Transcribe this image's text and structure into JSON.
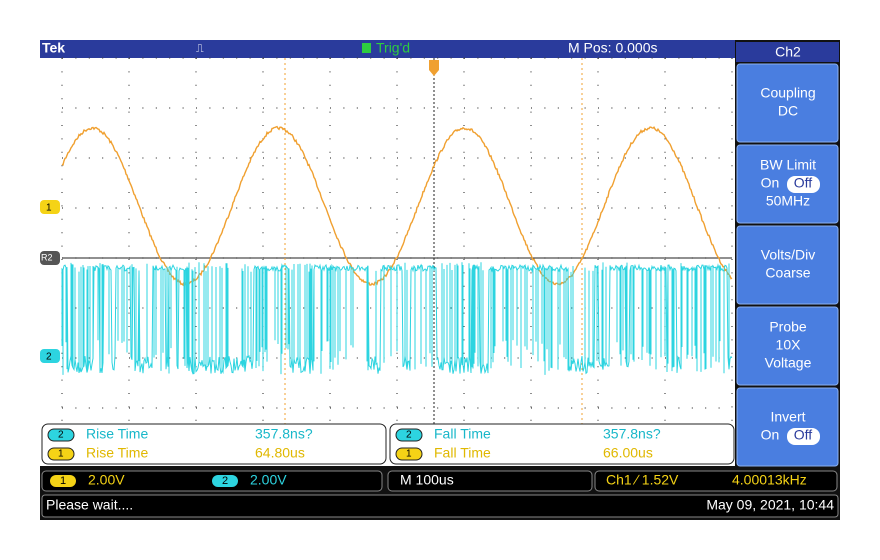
{
  "header": {
    "brand": "Tek",
    "trigger_state": "Trig'd",
    "position": "M Pos: 0.000s"
  },
  "markers": {
    "ch1": "1",
    "ref": "R2",
    "ch2": "2"
  },
  "menu": {
    "title": "Ch2",
    "buttons": [
      {
        "lines": [
          "Coupling",
          "DC"
        ]
      },
      {
        "lines": [
          "BW Limit",
          "50MHz"
        ],
        "toggle": [
          "On",
          "Off"
        ]
      },
      {
        "lines": [
          "Volts/Div",
          "Coarse"
        ]
      },
      {
        "lines": [
          "Probe",
          "10X",
          "Voltage"
        ]
      },
      {
        "lines": [
          "Invert"
        ],
        "toggle": [
          "On",
          "Off"
        ]
      }
    ]
  },
  "measurements": [
    {
      "channel": "2",
      "label": "Rise Time",
      "value": "357.8ns?"
    },
    {
      "channel": "1",
      "label": "Rise Time",
      "value": "64.80us"
    },
    {
      "channel": "2",
      "label": "Fall Time",
      "value": "357.8ns?"
    },
    {
      "channel": "1",
      "label": "Fall Time",
      "value": "66.00us"
    }
  ],
  "settings": {
    "ch1_badge": "1",
    "ch1_scale": "2.00V",
    "ch2_badge": "2",
    "ch2_scale": "2.00V",
    "timebase": "M 100us",
    "trigger": "Ch1 ∕ 1.52V",
    "frequency": "4.00013kHz"
  },
  "status": {
    "message": "Please wait....",
    "datetime": "May 09, 2021, 10:44"
  }
}
